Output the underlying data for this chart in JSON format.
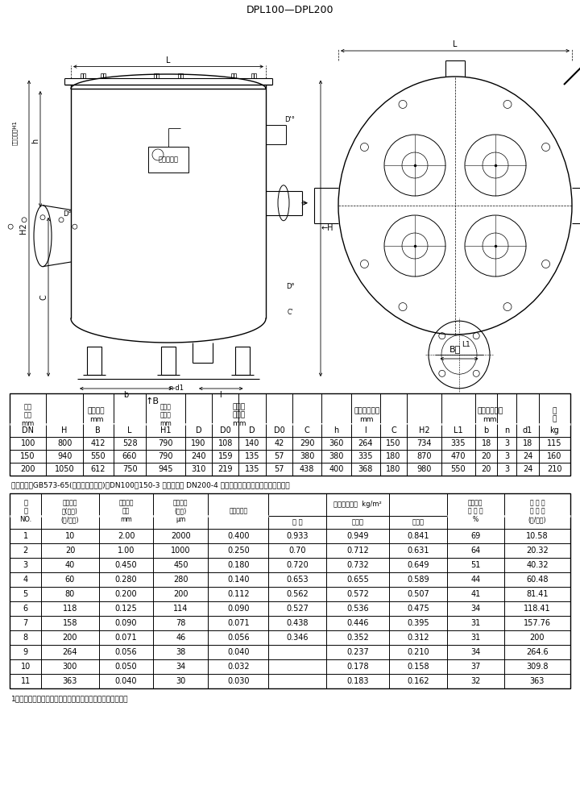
{
  "title": "DPL100～DPL200",
  "bg_color": "#ffffff",
  "table1_data": [
    [
      "100",
      "800",
      "412",
      "528",
      "790",
      "190",
      "108",
      "140",
      "42",
      "290",
      "360",
      "264",
      "150",
      "734",
      "335",
      "18",
      "3",
      "18",
      "115"
    ],
    [
      "150",
      "940",
      "550",
      "660",
      "790",
      "240",
      "159",
      "135",
      "57",
      "380",
      "380",
      "335",
      "180",
      "870",
      "470",
      "20",
      "3",
      "24",
      "160"
    ],
    [
      "200",
      "1050",
      "612",
      "750",
      "945",
      "310",
      "219",
      "135",
      "57",
      "438",
      "400",
      "368",
      "180",
      "980",
      "550",
      "20",
      "3",
      "24",
      "210"
    ]
  ],
  "table1_note": "法兰标准：GB573-65(可根据需要确定)，DN100、150-3 组滤芯组件 DN200-4 组滤芯组件，压差发讯器为选配件。",
  "table2_data": [
    [
      "1",
      "10",
      "2.00",
      "2000",
      "0.400",
      "0.933",
      "0.949",
      "0.841",
      "69",
      "10.58"
    ],
    [
      "2",
      "20",
      "1.00",
      "1000",
      "0.250",
      "0.70",
      "0.712",
      "0.631",
      "64",
      "20.32"
    ],
    [
      "3",
      "40",
      "0.450",
      "450",
      "0.180",
      "0.720",
      "0.732",
      "0.649",
      "51",
      "40.32"
    ],
    [
      "4",
      "60",
      "0.280",
      "280",
      "0.140",
      "0.653",
      "0.655",
      "0.589",
      "44",
      "60.48"
    ],
    [
      "5",
      "80",
      "0.200",
      "200",
      "0.112",
      "0.562",
      "0.572",
      "0.507",
      "41",
      "81.41"
    ],
    [
      "6",
      "118",
      "0.125",
      "114",
      "0.090",
      "0.527",
      "0.536",
      "0.475",
      "34",
      "118.41"
    ],
    [
      "7",
      "158",
      "0.090",
      "78",
      "0.071",
      "0.438",
      "0.446",
      "0.395",
      "31",
      "157.76"
    ],
    [
      "8",
      "200",
      "0.071",
      "46",
      "0.056",
      "0.346",
      "0.352",
      "0.312",
      "31",
      "200"
    ],
    [
      "9",
      "264",
      "0.056",
      "38",
      "0.040",
      "",
      "0.237",
      "0.210",
      "34",
      "264.6"
    ],
    [
      "10",
      "300",
      "0.050",
      "34",
      "0.032",
      "",
      "0.178",
      "0.158",
      "37",
      "309.8"
    ],
    [
      "11",
      "363",
      "0.040",
      "30",
      "0.030",
      "",
      "0.183",
      "0.162",
      "32",
      "363"
    ]
  ],
  "table2_note": "1、金属丝网编织形式，平纹编织。２、过滤精度仅供参考。"
}
